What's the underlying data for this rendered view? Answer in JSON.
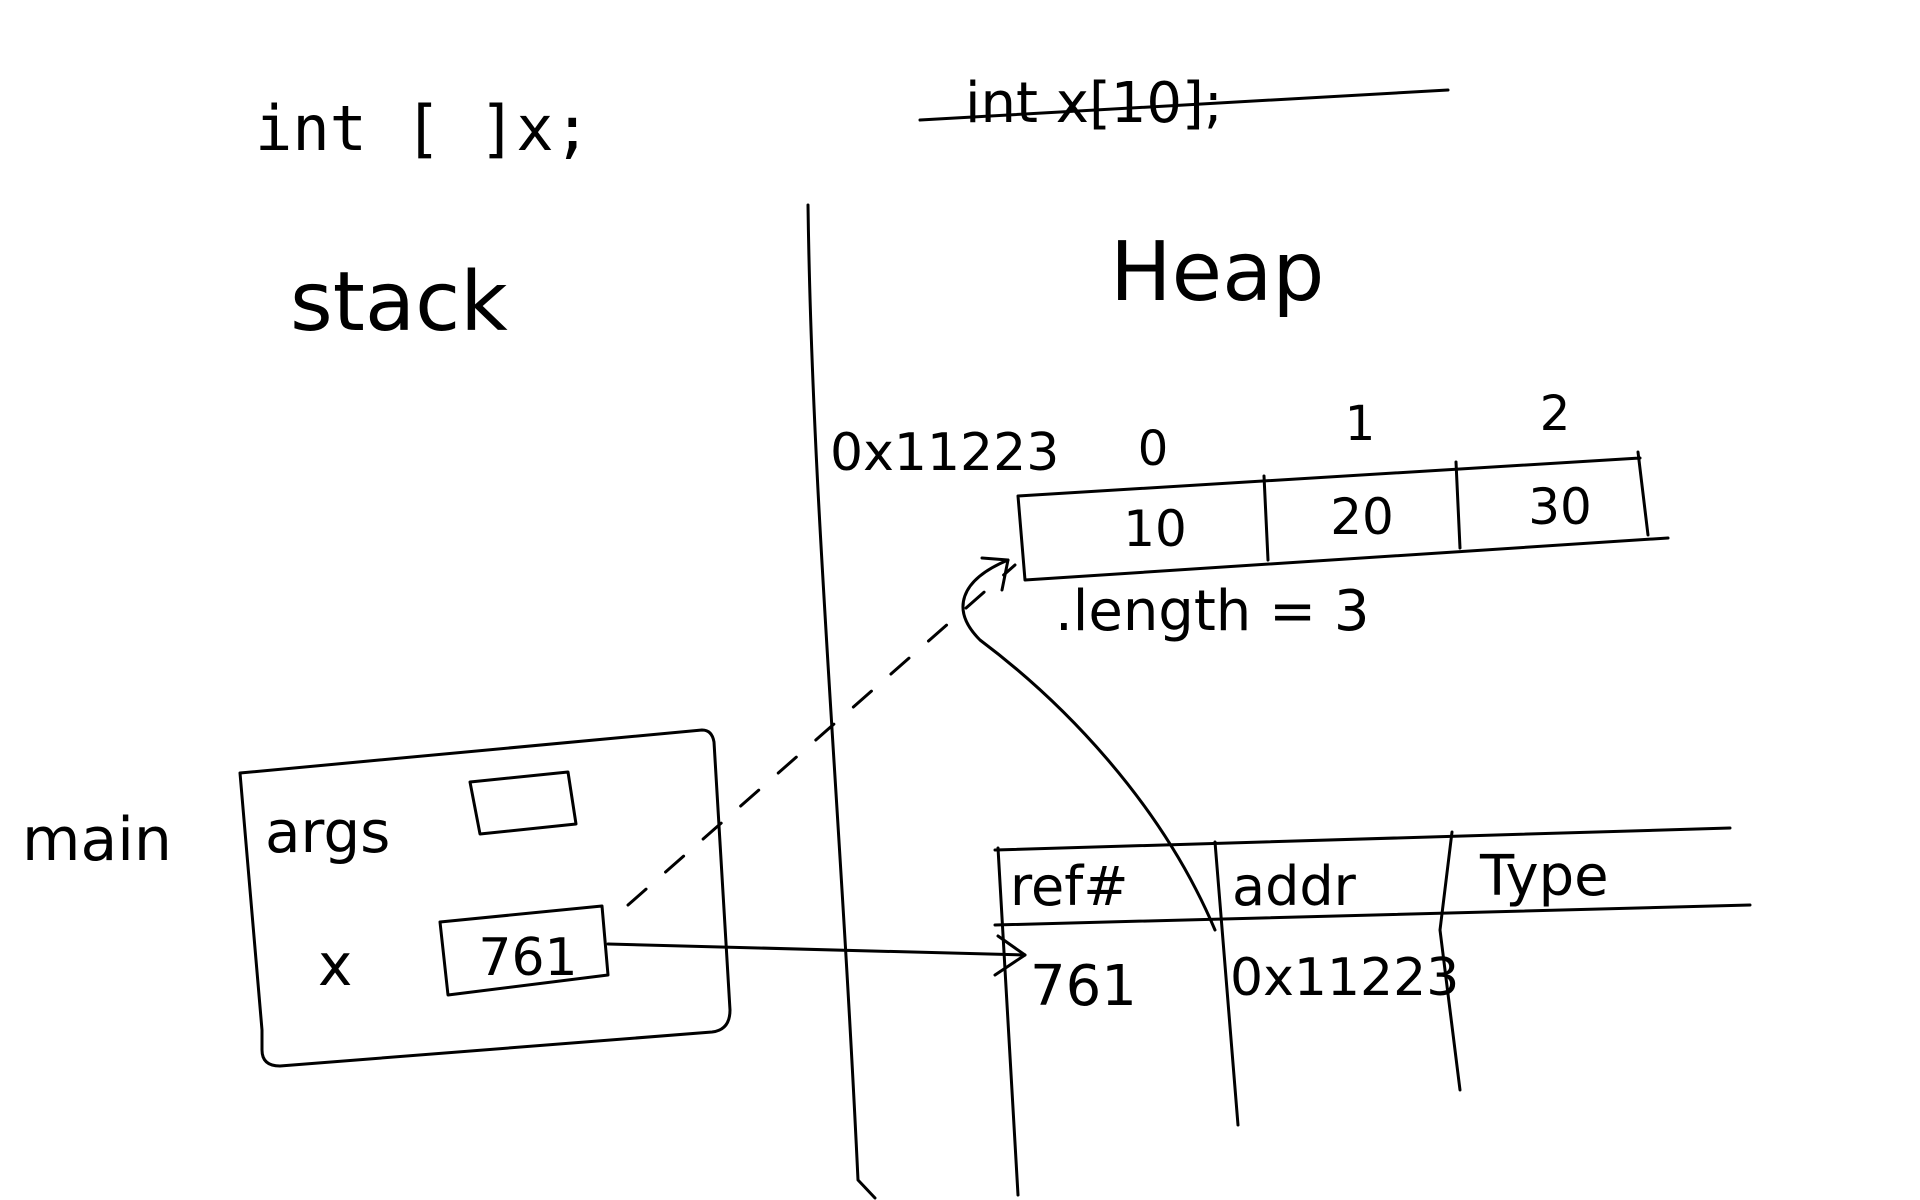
{
  "declarations": {
    "valid": "int [ ]x;",
    "struck": "int x[10];"
  },
  "regions": {
    "stack": "stack",
    "heap": "Heap"
  },
  "frame": {
    "label": "main",
    "vars": [
      {
        "name": "args",
        "value": ""
      },
      {
        "name": "x",
        "value": "761"
      }
    ]
  },
  "array": {
    "address": "0x11223",
    "indices": [
      "0",
      "1",
      "2"
    ],
    "values": [
      "10",
      "20",
      "30"
    ],
    "length_note": ".length = 3"
  },
  "ref_table": {
    "headers": [
      "ref#",
      "addr",
      "Type"
    ],
    "rows": [
      {
        "ref": "761",
        "addr": "0x11223",
        "type": ""
      }
    ]
  }
}
